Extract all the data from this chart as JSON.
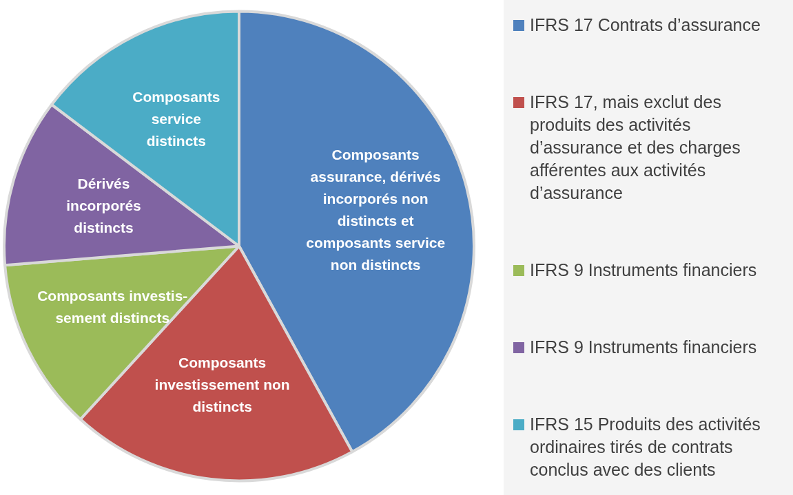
{
  "chart_data": {
    "type": "pie",
    "categories": [
      "IFRS 17 Contrats d’assurance",
      "IFRS 17, mais exclut des produits des activités d’assurance et des charges afférentes aux activités d’assurance",
      "IFRS 9 Instruments financiers",
      "IFRS 9 Instruments financiers",
      "IFRS 15 Produits des activités ordinaires tirés de contrats conclus avec des clients"
    ],
    "values": [
      42,
      19.8,
      11.9,
      11.6,
      14.7
    ],
    "colors": [
      "#4f81bd",
      "#c0504d",
      "#9bbb59",
      "#8064a2",
      "#4bacc6"
    ],
    "value_labels": [
      "Composants\nassurance, dérivés\nincorporés non\ndistincts et\ncomposants service\nnon distincts",
      "Composants\ninvestissement non\ndistincts",
      "Composants investis-\nsement distincts",
      "Dérivés\nincorporés\ndistincts",
      "Composants\nservice\ndistincts"
    ],
    "legend": "right"
  }
}
